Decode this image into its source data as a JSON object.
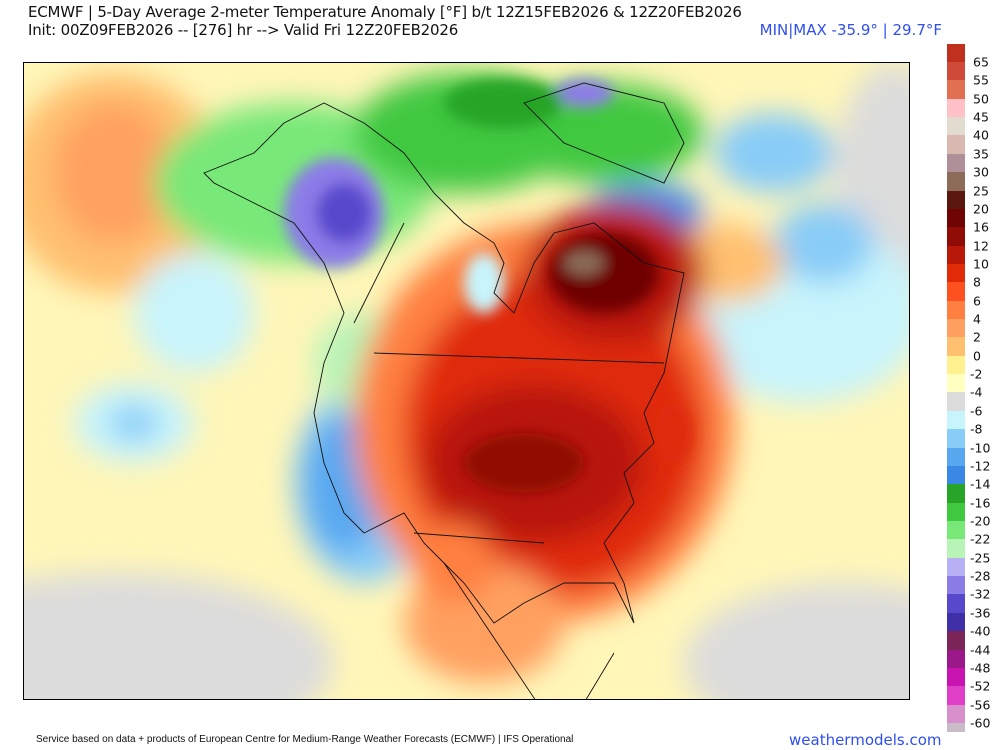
{
  "header": {
    "title": "ECMWF | 5-Day Average 2-meter Temperature Anomaly [°F] b/t 12Z15FEB2026 & 12Z20FEB2026",
    "subtitle": "Init: 00Z09FEB2026 -- [276] hr --> Valid Fri 12Z20FEB2026",
    "minmax": "MIN|MAX -35.9° | 29.7°F"
  },
  "colorbar": {
    "labels": [
      "65",
      "55",
      "50",
      "45",
      "40",
      "35",
      "30",
      "25",
      "20",
      "16",
      "12",
      "10",
      "8",
      "6",
      "4",
      "2",
      "0",
      "-2",
      "-4",
      "-6",
      "-8",
      "-10",
      "-12",
      "-14",
      "-16",
      "-20",
      "-22",
      "-25",
      "-28",
      "-32",
      "-36",
      "-40",
      "-44",
      "-48",
      "-52",
      "-56",
      "-60"
    ],
    "colors": [
      "#c0301e",
      "#d04a3a",
      "#e07050",
      "#ffc0c8",
      "#e2dccf",
      "#d8b8b0",
      "#b09098",
      "#8c6c58",
      "#5a1810",
      "#6e0404",
      "#900c06",
      "#b81808",
      "#e02a08",
      "#ff5020",
      "#ff8040",
      "#ffa060",
      "#ffc070",
      "#fff090",
      "#ffffc0",
      "#dcdcdc",
      "#c8f4fc",
      "#88ccf8",
      "#58a8f0",
      "#3a88e6",
      "#28a428",
      "#40c840",
      "#78e878",
      "#b8f4b8",
      "#b8b0f4",
      "#8c7ce8",
      "#5848cc",
      "#4030a8",
      "#7a2458",
      "#9a1888",
      "#c814b0",
      "#e040c8",
      "#d890cc",
      "#c8bcc8"
    ]
  },
  "footer": {
    "credit": "Service based on data + products of European Centre for Medium-Range Weather Forecasts (ECMWF) | IFS Operational",
    "brand": "weathermodels.com"
  }
}
